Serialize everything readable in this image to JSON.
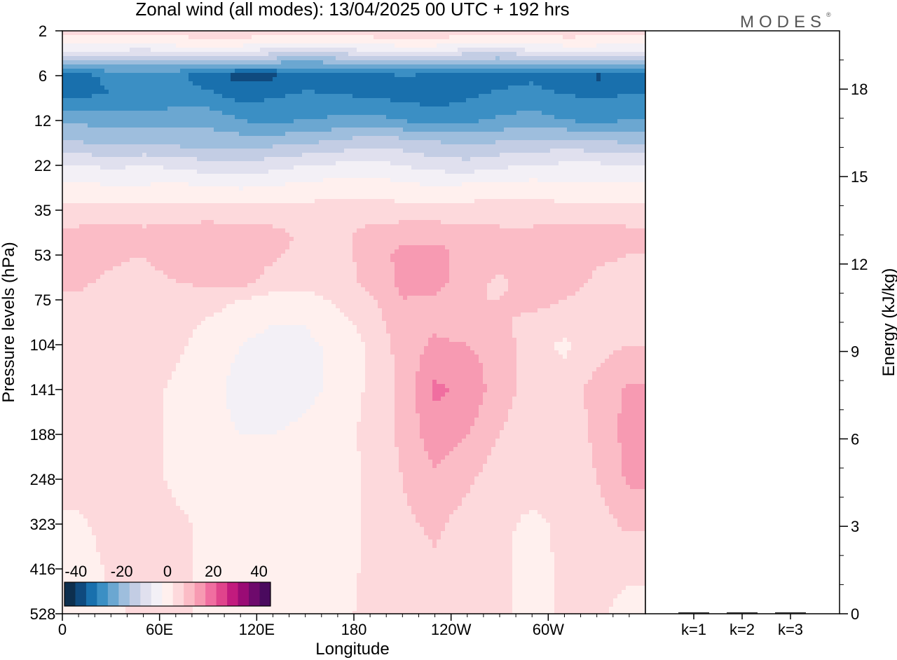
{
  "logo": "MODES",
  "chart_data": [
    {
      "type": "heatmap",
      "title": "Zonal wind (all modes):  13/04/2025  00 UTC  + 192 hrs",
      "xlabel": "Longitude",
      "ylabel": "Pressure levels (hPa)",
      "x_ticks": [
        "0",
        "60E",
        "120E",
        "180",
        "120W",
        "60W"
      ],
      "x_tick_degrees": [
        0,
        60,
        120,
        180,
        240,
        300
      ],
      "xlim": [
        0,
        360
      ],
      "y_ticks": [
        2,
        6,
        12,
        22,
        35,
        53,
        75,
        104,
        141,
        188,
        248,
        323,
        416,
        528
      ],
      "colorbar": {
        "labels": [
          "-40",
          "-20",
          "0",
          "20",
          "40"
        ],
        "label_values": [
          -40,
          -20,
          0,
          20,
          40
        ],
        "levels": [
          -45,
          -40,
          -35,
          -30,
          -25,
          -20,
          -15,
          -10,
          -5,
          0,
          5,
          10,
          15,
          20,
          25,
          30,
          35,
          40,
          45
        ]
      },
      "colors": [
        "#0d2f4e",
        "#0f4a7e",
        "#1970ad",
        "#3b8fc4",
        "#6ba7d1",
        "#9ebedd",
        "#c3cde4",
        "#e0e0ee",
        "#f3f0f6",
        "#fff0ee",
        "#fdd9dc",
        "#fbbcc6",
        "#f79ab2",
        "#f06ea0",
        "#e0448c",
        "#c21b7e",
        "#9a0b75",
        "#6e0a6c",
        "#4a0a5e"
      ],
      "rows": [
        {
          "level": 2,
          "values": [
            2,
            2,
            2,
            3,
            4,
            5,
            3,
            2,
            3,
            4,
            6,
            5,
            3,
            2,
            2,
            4,
            3,
            2
          ]
        },
        {
          "level": 3,
          "values": [
            -6,
            -7,
            -8,
            -6,
            -5,
            -6,
            -8,
            -9,
            -8,
            -7,
            -6,
            -6,
            -8,
            -9,
            -7,
            -6,
            -6,
            -7
          ]
        },
        {
          "level": 4,
          "values": [
            -18,
            -19,
            -20,
            -19,
            -18,
            -20,
            -21,
            -22,
            -21,
            -20,
            -19,
            -20,
            -21,
            -21,
            -20,
            -19,
            -19,
            -19
          ]
        },
        {
          "level": 6,
          "values": [
            -37,
            -34,
            -32,
            -34,
            -38,
            -42,
            -41,
            -39,
            -40,
            -38,
            -35,
            -37,
            -40,
            -38,
            -36,
            -40,
            -41,
            -40
          ]
        },
        {
          "level": 8,
          "values": [
            -36,
            -35,
            -34,
            -33,
            -34,
            -37,
            -36,
            -34,
            -35,
            -36,
            -37,
            -38,
            -36,
            -34,
            -33,
            -35,
            -36,
            -35
          ]
        },
        {
          "level": 12,
          "values": [
            -26,
            -27,
            -28,
            -27,
            -26,
            -30,
            -31,
            -30,
            -29,
            -28,
            -30,
            -32,
            -31,
            -29,
            -28,
            -30,
            -31,
            -30
          ]
        },
        {
          "level": 16,
          "values": [
            -20,
            -22,
            -21,
            -22,
            -23,
            -22,
            -22,
            -21,
            -19,
            -17,
            -18,
            -20,
            -21,
            -20,
            -19,
            -18,
            -19,
            -21
          ]
        },
        {
          "level": 22,
          "values": [
            -10,
            -11,
            -10,
            -11,
            -13,
            -14,
            -12,
            -10,
            -9,
            -8,
            -10,
            -12,
            -13,
            -11,
            -10,
            -9,
            -9,
            -10
          ]
        },
        {
          "level": 28,
          "values": [
            -3,
            -4,
            -4,
            -3,
            -4,
            -5,
            -4,
            -3,
            -2,
            -2,
            -3,
            -4,
            -3,
            -2,
            -2,
            -3,
            -3,
            -3
          ]
        },
        {
          "level": 35,
          "values": [
            2,
            2,
            2,
            2,
            2,
            2,
            2,
            2,
            2,
            2,
            2,
            2,
            2,
            2,
            2,
            2,
            2,
            2
          ]
        },
        {
          "level": 45,
          "values": [
            7,
            8,
            7,
            8,
            9,
            8,
            7,
            4,
            3,
            8,
            9,
            9,
            8,
            7,
            7,
            8,
            8,
            7
          ]
        },
        {
          "level": 53,
          "values": [
            7,
            6,
            5,
            8,
            8,
            7,
            6,
            3,
            2,
            8,
            11,
            12,
            8,
            7,
            7,
            7,
            6,
            5
          ]
        },
        {
          "level": 65,
          "values": [
            6,
            4,
            3,
            5,
            6,
            7,
            3,
            2,
            2,
            7,
            11,
            12,
            7,
            4,
            7,
            8,
            4,
            3
          ]
        },
        {
          "level": 75,
          "values": [
            4,
            3,
            2,
            4,
            2,
            0,
            -2,
            -2,
            1,
            4,
            10,
            9,
            5,
            5,
            7,
            5,
            2,
            2
          ]
        },
        {
          "level": 90,
          "values": [
            2,
            3,
            2,
            2,
            -1,
            -3,
            -5,
            -5,
            -2,
            2,
            8,
            9,
            7,
            6,
            3,
            2,
            2,
            3
          ]
        },
        {
          "level": 104,
          "values": [
            2,
            4,
            2,
            1,
            -2,
            -5,
            -7,
            -6,
            -4,
            1,
            7,
            11,
            10,
            8,
            2,
            -1,
            3,
            5
          ]
        },
        {
          "level": 141,
          "values": [
            2,
            4,
            2,
            -1,
            -3,
            -7,
            -8,
            -6,
            -4,
            1,
            6,
            16,
            14,
            7,
            3,
            2,
            7,
            11
          ]
        },
        {
          "level": 188,
          "values": [
            2,
            3,
            2,
            -1,
            -3,
            -5,
            -5,
            -4,
            -3,
            2,
            6,
            13,
            10,
            5,
            2,
            2,
            6,
            12
          ]
        },
        {
          "level": 248,
          "values": [
            2,
            3,
            2,
            -1,
            -2,
            -3,
            -3,
            -4,
            -3,
            1,
            5,
            9,
            6,
            2,
            2,
            2,
            5,
            11
          ]
        },
        {
          "level": 323,
          "values": [
            -1,
            2,
            2,
            1,
            -1,
            -2,
            -2,
            -3,
            -2,
            1,
            4,
            6,
            3,
            1,
            -1,
            1,
            3,
            6
          ]
        },
        {
          "level": 416,
          "values": [
            -3,
            1,
            1,
            1,
            -1,
            -1,
            -2,
            -2,
            -2,
            1,
            2,
            4,
            2,
            1,
            -2,
            1,
            2,
            1
          ]
        },
        {
          "level": 528,
          "values": [
            -3,
            -1,
            1,
            1,
            -1,
            -1,
            -1,
            -1,
            -1,
            1,
            1,
            2,
            1,
            1,
            -2,
            1,
            1,
            -2
          ]
        }
      ]
    },
    {
      "type": "bar",
      "ylabel": "Energy (kJ/kg)",
      "categories": [
        "k=1",
        "k=2",
        "k=3"
      ],
      "values": [
        0.03,
        0.02,
        0.02
      ],
      "ylim": [
        0,
        20
      ],
      "y_ticks": [
        0,
        3,
        6,
        9,
        12,
        15,
        18
      ]
    }
  ]
}
